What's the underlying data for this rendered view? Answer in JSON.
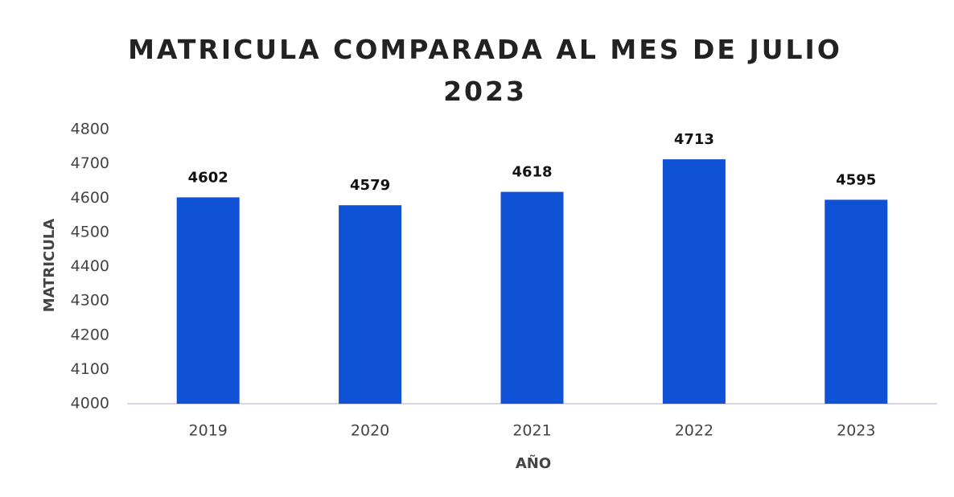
{
  "chart_data": {
    "type": "bar",
    "title": "MATRICULA COMPARADA AL MES DE JULIO 2023",
    "x_label": "AÑO",
    "y_label": "MATRICULA",
    "categories": [
      "2019",
      "2020",
      "2021",
      "2022",
      "2023"
    ],
    "values": [
      4602,
      4579,
      4618,
      4713,
      4595
    ],
    "color": "#0f52d6",
    "ylim": [
      4000,
      4800
    ],
    "yticks": [
      4000,
      4100,
      4200,
      4300,
      4400,
      4500,
      4600,
      4700,
      4800
    ],
    "grid": false
  }
}
